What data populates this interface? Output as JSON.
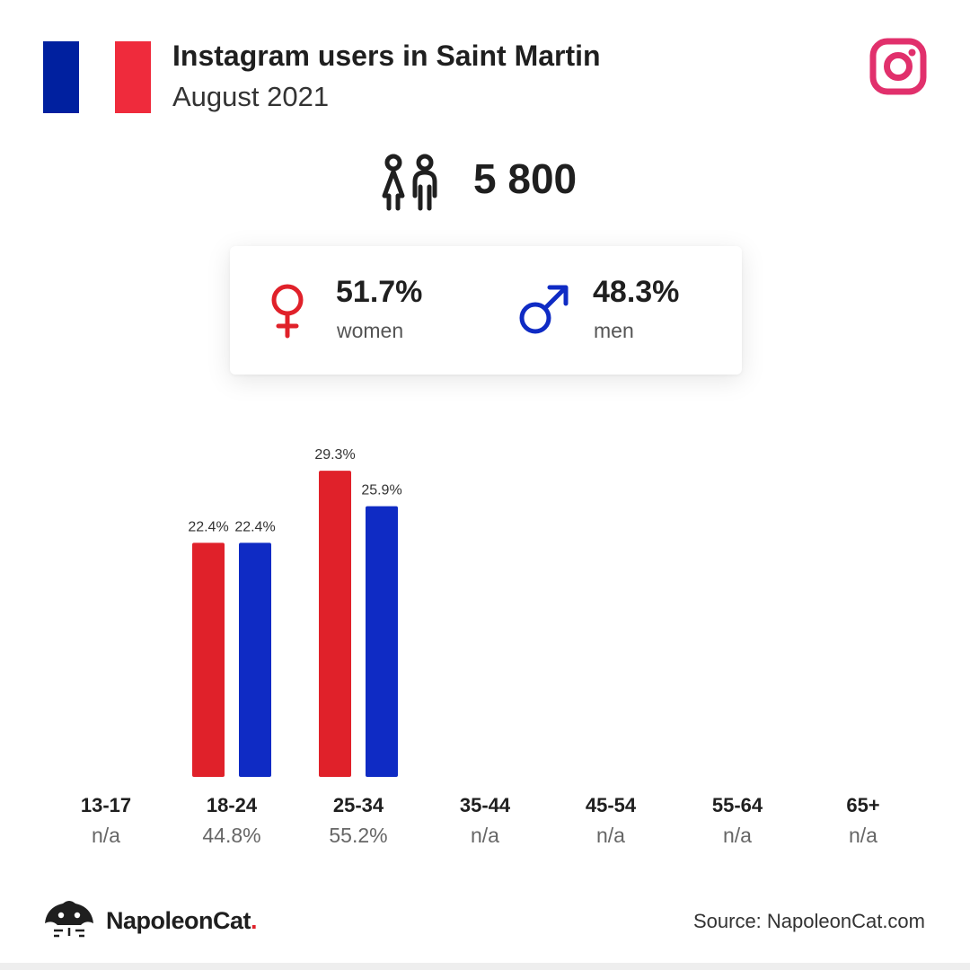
{
  "header": {
    "title": "Instagram users in Saint Martin",
    "subtitle": "August 2021",
    "flag_colors": [
      "#00209f",
      "#ffffff",
      "#ef2b3c"
    ],
    "platform_icon": "instagram-icon",
    "platform_color": "#e1306c"
  },
  "users": {
    "icon": "people-icon",
    "count": "5 800"
  },
  "gender": {
    "women": {
      "icon": "female-symbol-icon",
      "pct": "51.7%",
      "label": "women",
      "color": "#e0212a"
    },
    "men": {
      "icon": "male-symbol-icon",
      "pct": "48.3%",
      "label": "men",
      "color": "#0f2bc4"
    }
  },
  "chart_data": {
    "type": "bar",
    "categories": [
      "13-17",
      "18-24",
      "25-34",
      "35-44",
      "45-54",
      "55-64",
      "65+"
    ],
    "series": [
      {
        "name": "women",
        "color": "#e0212a",
        "values": [
          null,
          22.4,
          29.3,
          null,
          null,
          null,
          null
        ],
        "labels": [
          "",
          "22.4%",
          "29.3%",
          "",
          "",
          "",
          ""
        ]
      },
      {
        "name": "men",
        "color": "#0f2bc4",
        "values": [
          null,
          22.4,
          25.9,
          null,
          null,
          null,
          null
        ],
        "labels": [
          "",
          "22.4%",
          "25.9%",
          "",
          "",
          "",
          ""
        ]
      }
    ],
    "totals": [
      "n/a",
      "44.8%",
      "55.2%",
      "n/a",
      "n/a",
      "n/a",
      "n/a"
    ],
    "ylim": [
      0,
      31.8
    ]
  },
  "footer": {
    "brand_logo": "napoleoncat-logo-icon",
    "brand_name": "NapoleonCat",
    "brand_dot": ".",
    "source": "Source: NapoleonCat.com"
  }
}
